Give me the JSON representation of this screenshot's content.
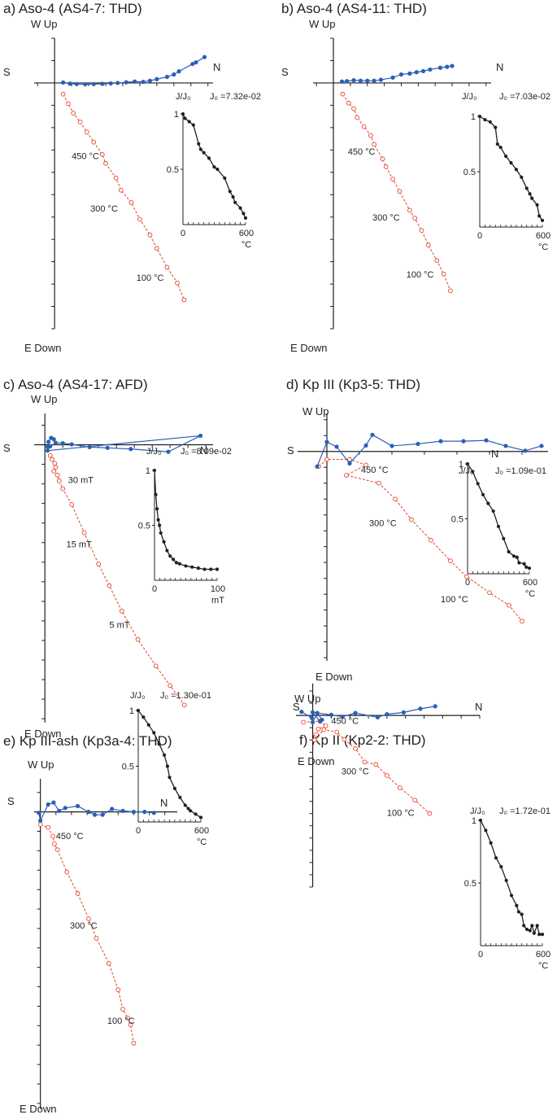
{
  "colors": {
    "horizontal": "#2b5fb4",
    "vertical": "#e8402a",
    "axis": "#231f20",
    "decay": "#231f20"
  },
  "chart_data": [
    {
      "type": "scatter",
      "title": "a) Aso-4 (AS4-7: THD)",
      "labels": {
        "up": "W Up",
        "down": "E Down",
        "left": "S",
        "right": "N"
      },
      "horizontal_projection": {
        "x": [
          0.5,
          0.9,
          1.3,
          1.8,
          2.3,
          2.8,
          3.3,
          3.7,
          4.2,
          4.7,
          5.2,
          5.6,
          6.0,
          6.6,
          7.0,
          7.3,
          8.1,
          8.3,
          8.8
        ],
        "y": [
          0.02,
          -0.03,
          -0.05,
          -0.06,
          -0.05,
          -0.04,
          -0.02,
          0.0,
          0.03,
          0.06,
          0.05,
          0.1,
          0.17,
          0.27,
          0.38,
          0.52,
          0.85,
          0.92,
          1.16
        ]
      },
      "vertical_projection": {
        "x": [
          0.5,
          0.8,
          1.1,
          1.5,
          1.9,
          2.3,
          2.8,
          3.0,
          3.6,
          3.9,
          4.5,
          5.0,
          5.6,
          6.0,
          6.6,
          7.2,
          7.6
        ],
        "y": [
          -0.5,
          -0.93,
          -1.35,
          -1.75,
          -2.2,
          -2.65,
          -3.2,
          -3.6,
          -4.25,
          -4.8,
          -5.35,
          -6.1,
          -6.8,
          -7.4,
          -8.25,
          -8.95,
          -9.7
        ]
      },
      "step_labels": [
        {
          "text": "450 °C",
          "x": 1.0,
          "y": -3.4
        },
        {
          "text": "300 °C",
          "x": 2.1,
          "y": -5.75
        },
        {
          "text": "100 °C",
          "x": 4.8,
          "y": -8.85
        }
      ],
      "xlim": [
        -1.2,
        9.3
      ],
      "ylim": [
        -11.0,
        2.0
      ],
      "decay": {
        "label": "J/J₀",
        "j0_label": "J₀ =7.32e-02",
        "xlabel": "°C",
        "xmax_label": "600",
        "x": [
          0,
          20,
          60,
          100,
          150,
          170,
          200,
          250,
          300,
          330,
          400,
          450,
          480,
          500,
          550,
          580,
          600
        ],
        "y": [
          1.0,
          0.96,
          0.93,
          0.9,
          0.73,
          0.68,
          0.65,
          0.6,
          0.52,
          0.5,
          0.42,
          0.3,
          0.25,
          0.2,
          0.15,
          0.1,
          0.06
        ],
        "xlim": [
          0,
          600
        ],
        "ylim": [
          0,
          1
        ],
        "ytick_labels": [
          "1",
          "0.5"
        ],
        "xtick_labels": [
          "0",
          "600"
        ]
      }
    },
    {
      "type": "scatter",
      "title": "b) Aso-4 (AS4-11: THD)",
      "labels": {
        "up": "W Up",
        "down": "E Down",
        "left": "S",
        "right": "N"
      },
      "horizontal_projection": {
        "x": [
          0.5,
          0.8,
          1.2,
          1.6,
          2.0,
          2.4,
          2.8,
          3.5,
          4.0,
          4.5,
          4.9,
          5.3,
          5.7,
          6.3,
          6.7,
          7.0
        ],
        "y": [
          0.06,
          0.08,
          0.12,
          0.1,
          0.1,
          0.1,
          0.14,
          0.24,
          0.38,
          0.42,
          0.48,
          0.53,
          0.6,
          0.68,
          0.72,
          0.76
        ]
      },
      "vertical_projection": {
        "x": [
          0.55,
          0.9,
          1.2,
          1.4,
          1.8,
          2.2,
          2.4,
          2.9,
          3.1,
          3.5,
          3.9,
          4.5,
          4.8,
          5.2,
          5.6,
          6.1,
          6.5,
          6.9
        ],
        "y": [
          -0.5,
          -0.9,
          -1.15,
          -1.55,
          -1.95,
          -2.35,
          -2.75,
          -3.4,
          -3.75,
          -4.3,
          -4.85,
          -5.7,
          -6.05,
          -6.6,
          -7.25,
          -7.95,
          -8.55,
          -9.3
        ]
      },
      "step_labels": [
        {
          "text": "450 °C",
          "x": 0.85,
          "y": -3.2
        },
        {
          "text": "300 °C",
          "x": 2.3,
          "y": -6.15
        },
        {
          "text": "100 °C",
          "x": 4.3,
          "y": -8.7
        }
      ],
      "xlim": [
        -1.2,
        9.3
      ],
      "ylim": [
        -11.0,
        2.0
      ],
      "decay": {
        "label": "J/J₀",
        "j0_label": "J₀ =7.03e-02",
        "xlabel": "°C",
        "xmax_label": "600",
        "x": [
          0,
          50,
          100,
          150,
          170,
          200,
          250,
          300,
          350,
          400,
          450,
          480,
          500,
          550,
          570,
          600
        ],
        "y": [
          1.0,
          0.97,
          0.95,
          0.9,
          0.75,
          0.72,
          0.64,
          0.58,
          0.52,
          0.45,
          0.35,
          0.3,
          0.26,
          0.2,
          0.1,
          0.06
        ],
        "xlim": [
          0,
          600
        ],
        "ylim": [
          0,
          1
        ],
        "ytick_labels": [
          "1",
          "0.5"
        ],
        "xtick_labels": [
          "0",
          "600"
        ]
      }
    },
    {
      "type": "scatter",
      "title": "c) Aso-4 (AS4-17: AFD)",
      "labels": {
        "up": "W Up",
        "down": "E Down",
        "left": "S",
        "right": "N"
      },
      "horizontal_projection": {
        "x": [
          0.15,
          0.2,
          0.35,
          0.5,
          0.6,
          1.0,
          1.5,
          2.5,
          3.5,
          4.8,
          6.9,
          8.7,
          0.15,
          0.3
        ],
        "y": [
          -0.1,
          0.15,
          0.35,
          0.28,
          0.1,
          0.08,
          0.02,
          -0.12,
          -0.16,
          -0.22,
          -0.36,
          0.46,
          -0.3,
          -0.08
        ]
      },
      "vertical_projection": {
        "x": [
          0.3,
          0.4,
          0.55,
          0.6,
          0.5,
          0.7,
          0.8,
          1.0,
          1.5,
          2.2,
          3.0,
          3.6,
          4.3,
          5.2,
          6.2,
          7.0,
          7.8
        ],
        "y": [
          -0.55,
          -0.75,
          -0.95,
          -1.15,
          -1.35,
          -1.55,
          -1.85,
          -2.25,
          -3.05,
          -4.5,
          -6.1,
          -7.2,
          -8.5,
          -9.95,
          -11.3,
          -12.3,
          -13.3
        ]
      },
      "step_labels": [
        {
          "text": "30 mT",
          "x": 1.3,
          "y": -1.95
        },
        {
          "text": "15 mT",
          "x": 1.2,
          "y": -5.25
        },
        {
          "text": "5 mT",
          "x": 3.6,
          "y": -9.35
        }
      ],
      "xlim": [
        -0.6,
        9.4
      ],
      "ylim": [
        -14.2,
        1.6
      ],
      "decay": {
        "label": "J/J₀",
        "j0_label": "J₀ =8.09e-02",
        "xlabel": "mT",
        "xmax_label": "100",
        "x": [
          0,
          2,
          4,
          6,
          8,
          10,
          15,
          20,
          25,
          30,
          35,
          40,
          50,
          60,
          70,
          80,
          90,
          100
        ],
        "y": [
          1.0,
          0.78,
          0.65,
          0.55,
          0.5,
          0.43,
          0.35,
          0.27,
          0.22,
          0.19,
          0.16,
          0.15,
          0.13,
          0.12,
          0.11,
          0.1,
          0.1,
          0.1
        ],
        "xlim": [
          0,
          100
        ],
        "ylim": [
          0,
          1
        ],
        "ytick_labels": [
          "1",
          "0.5"
        ],
        "xtick_labels": [
          "0",
          "100"
        ]
      }
    },
    {
      "type": "scatter",
      "title": "d) Kp III (Kp3-5: THD)",
      "labels": {
        "up": "W Up",
        "down": "E Down",
        "left": "S",
        "right": "N"
      },
      "horizontal_projection": {
        "x": [
          -0.3,
          0.0,
          0.3,
          0.7,
          1.2,
          1.4,
          2.0,
          2.8,
          3.5,
          4.2,
          4.9,
          5.5,
          6.1,
          6.6
        ],
        "y": [
          -0.95,
          0.6,
          0.3,
          -0.75,
          0.38,
          1.05,
          0.35,
          0.48,
          0.65,
          0.65,
          0.7,
          0.35,
          0.05,
          0.35
        ]
      },
      "vertical_projection": {
        "x": [
          -0.25,
          0.0,
          0.7,
          1.2,
          0.6,
          1.6,
          2.1,
          2.6,
          3.2,
          3.8,
          4.3,
          5.0,
          5.6,
          6.0
        ],
        "y": [
          -0.95,
          -0.5,
          -0.5,
          -0.85,
          -1.5,
          -2.0,
          -3.0,
          -4.3,
          -5.6,
          -6.9,
          -7.9,
          -8.9,
          -9.7,
          -10.7
        ]
      },
      "step_labels": [
        {
          "text": "450 °C",
          "x": 1.05,
          "y": -1.35
        },
        {
          "text": "300 °C",
          "x": 1.3,
          "y": -4.7
        },
        {
          "text": "100 °C",
          "x": 3.5,
          "y": -9.5
        }
      ],
      "xlim": [
        -0.9,
        6.8
      ],
      "ylim": [
        -13.2,
        2.4
      ],
      "decay": {
        "label": "J/J₀",
        "j0_label": "J₀ =1.09e-01",
        "xlabel": "°C",
        "xmax_label": "600",
        "x": [
          0,
          50,
          100,
          150,
          200,
          250,
          300,
          350,
          400,
          450,
          480,
          500,
          550,
          570,
          600
        ],
        "y": [
          1.0,
          0.93,
          0.82,
          0.72,
          0.64,
          0.57,
          0.43,
          0.32,
          0.2,
          0.16,
          0.15,
          0.1,
          0.09,
          0.06,
          0.05
        ],
        "xlim": [
          0,
          600
        ],
        "ylim": [
          0,
          1
        ],
        "ytick_labels": [
          "1",
          "0.5"
        ],
        "xtick_labels": [
          "0",
          "600"
        ]
      }
    },
    {
      "type": "scatter",
      "title": "e) Kp III-ash (Kp3a-4: THD)",
      "labels": {
        "up": "W Up",
        "down": "E Down",
        "left": "S",
        "right": "N"
      },
      "horizontal_projection": {
        "x": [
          -0.1,
          0.0,
          0.5,
          0.85,
          1.2,
          1.6,
          2.4,
          3.1,
          3.5,
          4.0,
          4.6,
          5.3,
          6.0,
          6.7,
          7.3
        ],
        "y": [
          -0.05,
          -0.45,
          0.38,
          0.48,
          0.05,
          0.2,
          0.3,
          0.0,
          -0.15,
          -0.15,
          0.15,
          0.05,
          0.0,
          0.0,
          -0.05
        ]
      },
      "vertical_projection": {
        "x": [
          0.0,
          0.5,
          0.8,
          0.9,
          1.1,
          1.7,
          2.4,
          3.1,
          3.6,
          4.4,
          5.0,
          5.3,
          5.6,
          5.8,
          6.0
        ],
        "y": [
          -0.65,
          -0.8,
          -1.25,
          -1.65,
          -1.95,
          -3.1,
          -4.2,
          -5.5,
          -6.5,
          -7.8,
          -9.15,
          -10.15,
          -10.6,
          -10.95,
          -11.9
        ]
      },
      "step_labels": [
        {
          "text": "450 °C",
          "x": 1.0,
          "y": -1.4
        },
        {
          "text": "300 °C",
          "x": 1.9,
          "y": -6.0
        },
        {
          "text": "100 °C",
          "x": 4.3,
          "y": -10.9
        }
      ],
      "xlim": [
        -0.4,
        8.8
      ],
      "ylim": [
        -15.3,
        1.7
      ],
      "decay": {
        "label": "J/J₀",
        "j0_label": "J₀ =1.30e-01",
        "xlabel": "°C",
        "xmax_label": "600",
        "x": [
          0,
          50,
          100,
          150,
          200,
          250,
          280,
          300,
          350,
          400,
          450,
          480,
          500,
          550,
          600
        ],
        "y": [
          1.0,
          0.94,
          0.87,
          0.8,
          0.7,
          0.6,
          0.5,
          0.4,
          0.3,
          0.22,
          0.15,
          0.12,
          0.1,
          0.07,
          0.04
        ],
        "xlim": [
          0,
          600
        ],
        "ylim": [
          0,
          1
        ],
        "ytick_labels": [
          "1",
          "0.5"
        ],
        "xtick_labels": [
          "0",
          "600"
        ]
      }
    },
    {
      "type": "scatter",
      "title": "f) Kp II (Kp2-2: THD)",
      "labels": {
        "up": "W Up",
        "down": "E Down",
        "left": "S",
        "right": "N"
      },
      "horizontal_projection": {
        "x": [
          -0.6,
          -0.05,
          0.0,
          0.25,
          0.5,
          0.4,
          0.0,
          1.0,
          1.6,
          2.3,
          3.5,
          4.0,
          4.9,
          5.8,
          6.6
        ],
        "y": [
          0.3,
          -0.2,
          -0.55,
          0.2,
          -0.35,
          -0.5,
          0.25,
          0.05,
          -0.1,
          0.2,
          -0.15,
          0.1,
          0.25,
          0.55,
          0.75
        ]
      },
      "vertical_projection": {
        "x": [
          -0.5,
          0.4,
          0.7,
          0.3,
          0.2,
          0.1,
          0.6,
          1.3,
          1.7,
          2.3,
          2.8,
          3.4,
          4.0,
          4.7,
          5.5,
          6.3
        ],
        "y": [
          -0.55,
          -0.45,
          -0.85,
          -1.1,
          -1.55,
          -2.0,
          -1.15,
          -1.35,
          -1.95,
          -2.7,
          -3.8,
          -4.0,
          -4.9,
          -5.9,
          -6.9,
          -8.0
        ]
      },
      "step_labels": [
        {
          "text": "450 °C",
          "x": 1.0,
          "y": -0.7
        },
        {
          "text": "300 °C",
          "x": 1.55,
          "y": -4.8
        },
        {
          "text": "100 °C",
          "x": 4.0,
          "y": -8.2
        }
      ],
      "xlim": [
        -0.9,
        9.0
      ],
      "ylim": [
        -14.0,
        2.6
      ],
      "decay": {
        "label": "J/J₀",
        "j0_label": "J₀ =1.72e-01",
        "xlabel": "°C",
        "xmax_label": "600",
        "x": [
          0,
          50,
          100,
          150,
          200,
          250,
          300,
          350,
          370,
          400,
          420,
          450,
          480,
          500,
          520,
          550,
          570,
          600
        ],
        "y": [
          1.0,
          0.92,
          0.82,
          0.7,
          0.63,
          0.52,
          0.4,
          0.32,
          0.27,
          0.25,
          0.16,
          0.13,
          0.12,
          0.16,
          0.1,
          0.16,
          0.09,
          0.09
        ],
        "xlim": [
          0,
          600
        ],
        "ylim": [
          0,
          1
        ],
        "ytick_labels": [
          "1",
          "0.5"
        ],
        "xtick_labels": [
          "0",
          "600"
        ]
      }
    }
  ]
}
